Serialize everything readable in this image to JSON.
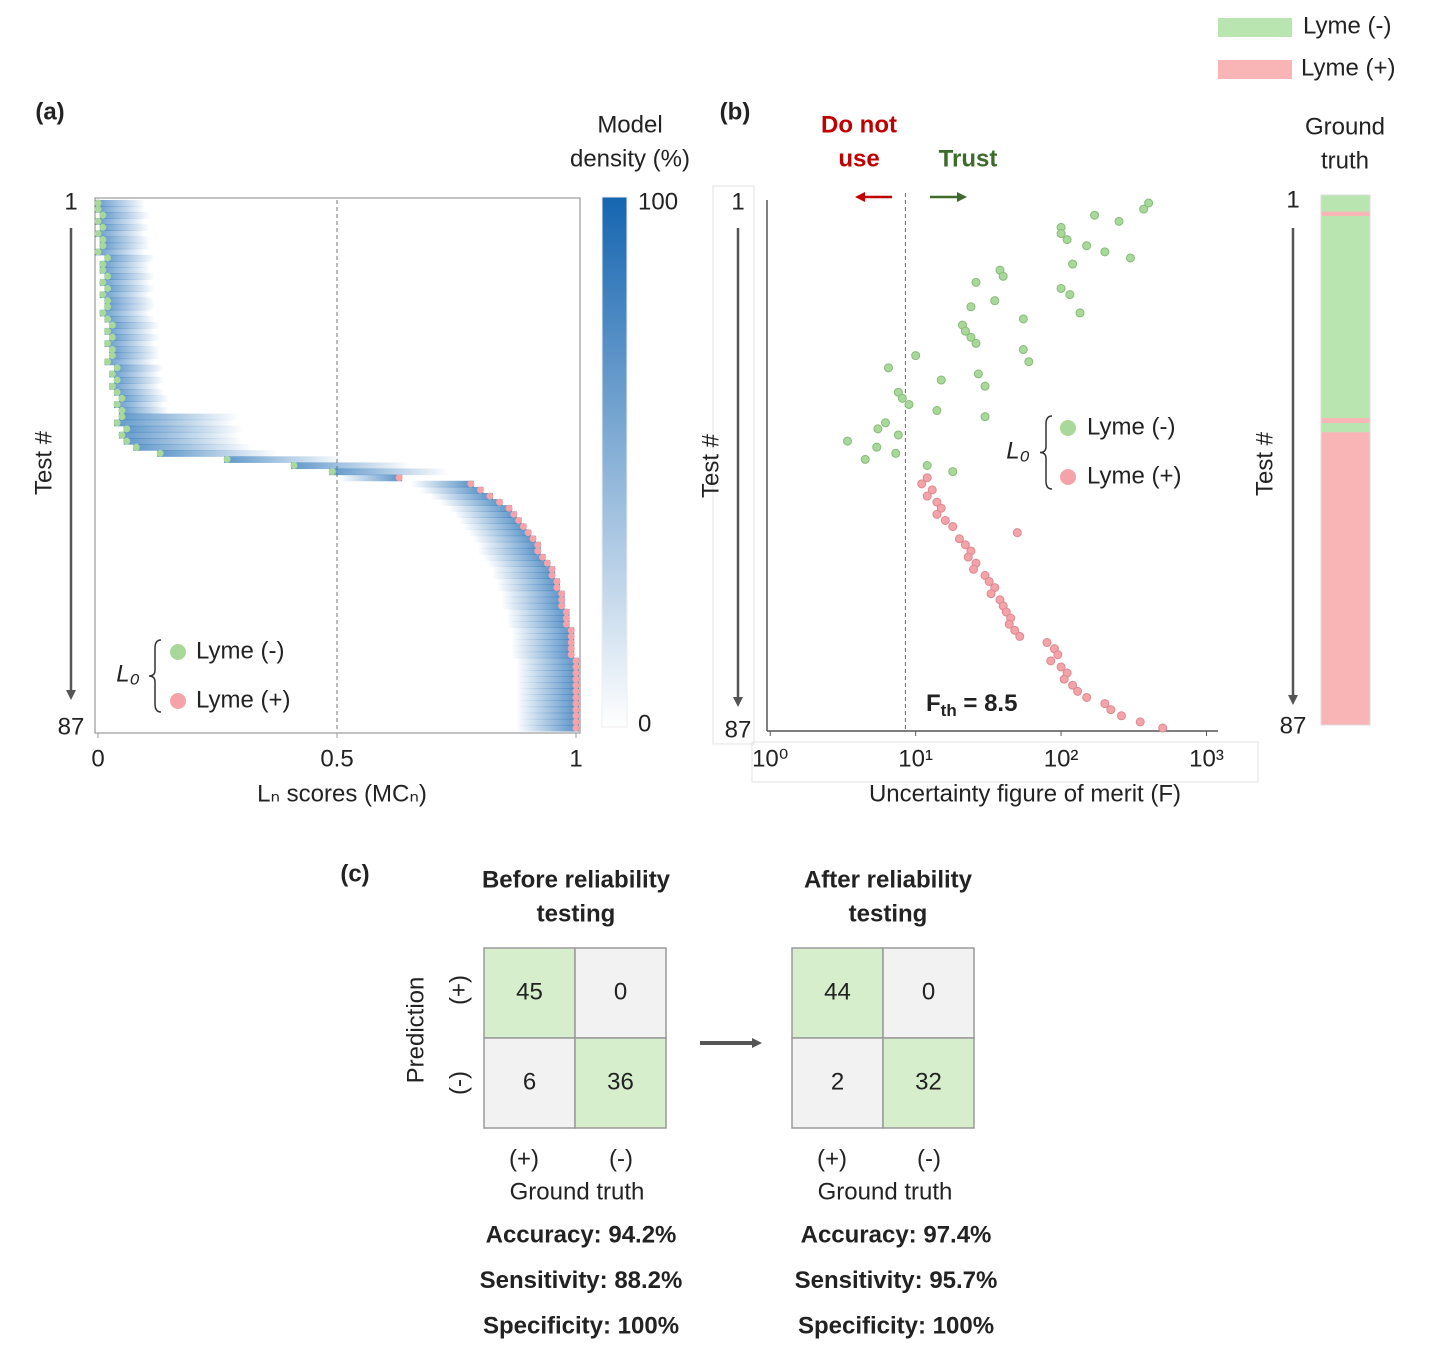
{
  "chart_data": [
    {
      "type": "scatter",
      "panel": "(a)",
      "xlabel": "Lₙ scores (MCₙ)",
      "ylabel": "Test #",
      "xlim": [
        0,
        1
      ],
      "xticks": [
        0,
        0.5,
        1
      ],
      "ylim": [
        1,
        87
      ],
      "yticks": [
        1,
        87
      ],
      "threshold": 0.5,
      "legend_title": "L₀",
      "density_color": "#2a74b8",
      "series": [
        {
          "name": "Lyme (-)",
          "color": "#a9d89b",
          "x": [
            0,
            0,
            0.01,
            0,
            0.01,
            0,
            0.01,
            0.01,
            0,
            0.02,
            0.01,
            0.01,
            0.02,
            0.01,
            0.02,
            0.01,
            0.02,
            0.02,
            0.01,
            0.02,
            0.03,
            0.02,
            0.03,
            0.02,
            0.03,
            0.03,
            0.02,
            0.04,
            0.03,
            0.04,
            0.03,
            0.04,
            0.05,
            0.04,
            0.05,
            0.05,
            0.04,
            0.06,
            0.05,
            0.06,
            0.08,
            0.13,
            0.27,
            0.41,
            0.49
          ],
          "values": [
            1,
            2,
            3,
            4,
            5,
            6,
            7,
            8,
            9,
            10,
            11,
            12,
            13,
            14,
            15,
            16,
            17,
            18,
            19,
            20,
            21,
            22,
            23,
            24,
            25,
            26,
            27,
            28,
            29,
            30,
            31,
            32,
            33,
            34,
            35,
            36,
            37,
            38,
            39,
            40,
            41,
            42,
            43,
            44,
            45
          ]
        },
        {
          "name": "Lyme (+)",
          "color": "#f5a3a8",
          "x": [
            0.63,
            0.78,
            0.8,
            0.82,
            0.84,
            0.86,
            0.87,
            0.88,
            0.89,
            0.9,
            0.91,
            0.92,
            0.92,
            0.93,
            0.94,
            0.95,
            0.95,
            0.96,
            0.96,
            0.97,
            0.97,
            0.97,
            0.98,
            0.98,
            0.98,
            0.99,
            0.99,
            0.99,
            0.99,
            0.99,
            1,
            1,
            1,
            1,
            1,
            1,
            1,
            1,
            1,
            1,
            1,
            1
          ],
          "values": [
            46,
            47,
            48,
            49,
            50,
            51,
            52,
            53,
            54,
            55,
            56,
            57,
            58,
            59,
            60,
            61,
            62,
            63,
            64,
            65,
            66,
            67,
            68,
            69,
            70,
            71,
            72,
            73,
            74,
            75,
            76,
            77,
            78,
            79,
            80,
            81,
            82,
            83,
            84,
            85,
            86,
            87
          ]
        }
      ],
      "colorbar": {
        "title": [
          "Model",
          "density (%)"
        ],
        "lim": [
          0,
          100
        ],
        "ticks": [
          0,
          100
        ],
        "colors": [
          "#ffffff",
          "#1565b0"
        ]
      }
    },
    {
      "type": "scatter",
      "panel": "(b)",
      "xlabel": "Uncertainty figure of merit (F)",
      "ylabel": "Test #",
      "log_x": true,
      "xlim": [
        0.95,
        1200
      ],
      "xticks": [
        {
          "value": 1,
          "label": "10⁰"
        },
        {
          "value": 10,
          "label": "10¹"
        },
        {
          "value": 100,
          "label": "10²"
        },
        {
          "value": 1000,
          "label": "10³"
        }
      ],
      "ylim": [
        1,
        87
      ],
      "yticks": [
        1,
        87
      ],
      "threshold": 8.5,
      "threshold_label": [
        "F",
        "th",
        " = 8.5"
      ],
      "legend_title": "L₀",
      "annotations": [
        {
          "text": [
            "Do not",
            "use"
          ],
          "color": "#c00000"
        },
        {
          "text": [
            "Trust"
          ],
          "color": "#3d6b2c"
        }
      ],
      "series": [
        {
          "name": "Lyme (-)",
          "color": "#a9d89b",
          "x": [
            400,
            370,
            170,
            250,
            100,
            100,
            110,
            150,
            200,
            300,
            120,
            38,
            40,
            26,
            100,
            115,
            35,
            24,
            135,
            55,
            21,
            22,
            24,
            26,
            55,
            10,
            60,
            6.5,
            27,
            15,
            30,
            7.6,
            8.1,
            9,
            14,
            30,
            6.2,
            5.5,
            7.6,
            3.4,
            5.4,
            7.3,
            4.5,
            12,
            18
          ],
          "values": [
            1,
            2,
            3,
            4,
            5,
            6,
            7,
            8,
            9,
            10,
            11,
            12,
            13,
            14,
            15,
            16,
            17,
            18,
            19,
            20,
            21,
            22,
            23,
            24,
            25,
            26,
            27,
            28,
            29,
            30,
            31,
            32,
            33,
            34,
            35,
            36,
            37,
            38,
            39,
            40,
            41,
            42,
            43,
            44,
            45
          ]
        },
        {
          "name": "Lyme (+)",
          "color": "#f5a3a8",
          "x": [
            12,
            11,
            13,
            12,
            14,
            15,
            14,
            16,
            18,
            50,
            20,
            22,
            24,
            23,
            26,
            25,
            30,
            32,
            35,
            33,
            38,
            40,
            42,
            45,
            44,
            48,
            52,
            80,
            90,
            95,
            85,
            100,
            110,
            105,
            120,
            130,
            150,
            200,
            220,
            260,
            350,
            500
          ],
          "values": [
            46,
            47,
            48,
            49,
            50,
            51,
            52,
            53,
            54,
            55,
            56,
            57,
            58,
            59,
            60,
            61,
            62,
            63,
            64,
            65,
            66,
            67,
            68,
            69,
            70,
            71,
            72,
            73,
            74,
            75,
            76,
            77,
            78,
            79,
            80,
            81,
            82,
            83,
            84,
            85,
            86,
            87
          ]
        }
      ]
    },
    {
      "type": "strip",
      "title": [
        "Ground",
        "truth"
      ],
      "ylabel": "Test #",
      "ylim": [
        1,
        87
      ],
      "yticks": [
        1,
        87
      ],
      "legend": [
        {
          "name": "Lyme (-)",
          "color": "#b9e5b0"
        },
        {
          "name": "Lyme (+)",
          "color": "#f9b5b5"
        }
      ],
      "segments": [
        {
          "from": 1,
          "to": 3.7,
          "color": "#b9e5b0"
        },
        {
          "from": 3.7,
          "to": 4.4,
          "color": "#f9b5b5"
        },
        {
          "from": 4.4,
          "to": 37.2,
          "color": "#b9e5b0"
        },
        {
          "from": 37.2,
          "to": 38,
          "color": "#f9b5b5"
        },
        {
          "from": 38,
          "to": 39.5,
          "color": "#b9e5b0"
        },
        {
          "from": 39.5,
          "to": 87,
          "color": "#f9b5b5"
        }
      ]
    }
  ],
  "panel_c": {
    "panel": "(c)",
    "ylabel": "Prediction",
    "xlabel": "Ground truth",
    "row_labels": [
      "(+)",
      "(-)"
    ],
    "col_labels": [
      "(+)",
      "(-)"
    ],
    "diagonal_color": "#d6eecb",
    "off_color": "#f2f2f2",
    "matrices": [
      {
        "title": [
          "Before reliability",
          "testing"
        ],
        "cells": [
          [
            45,
            0
          ],
          [
            6,
            36
          ]
        ],
        "metrics": [
          "Accuracy: 94.2%",
          "Sensitivity: 88.2%",
          "Specificity: 100%"
        ]
      },
      {
        "title": [
          "After reliability",
          "testing"
        ],
        "cells": [
          [
            44,
            0
          ],
          [
            2,
            32
          ]
        ],
        "metrics": [
          "Accuracy: 97.4%",
          "Sensitivity: 95.7%",
          "Specificity: 100%"
        ]
      }
    ]
  }
}
